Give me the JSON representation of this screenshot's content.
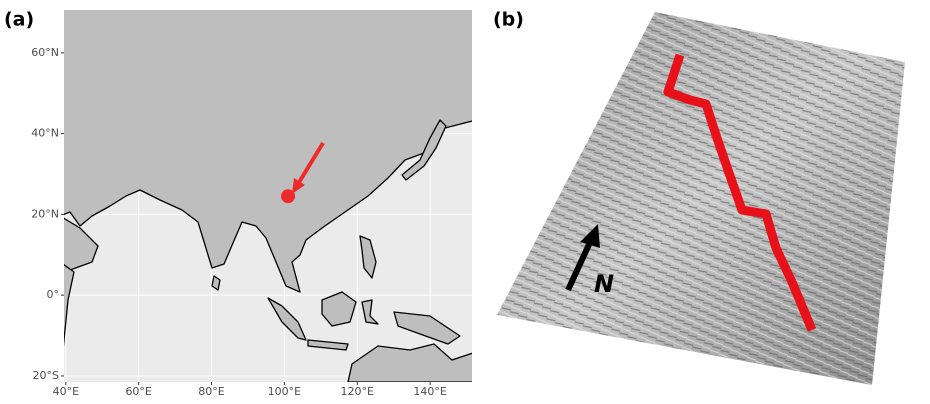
{
  "panel_a": {
    "label": "(a)",
    "lon_range": [
      39.5,
      151.5
    ],
    "lat_range": [
      -21.5,
      70.6
    ],
    "lat_ticks": [
      {
        "value": 60,
        "label": "60°N"
      },
      {
        "value": 40,
        "label": "40°N"
      },
      {
        "value": 20,
        "label": "20°N"
      },
      {
        "value": 0,
        "label": "0°"
      },
      {
        "value": -20,
        "label": "20°S"
      }
    ],
    "lon_ticks": [
      {
        "value": 40,
        "label": "40°E"
      },
      {
        "value": 60,
        "label": "60°E"
      },
      {
        "value": 80,
        "label": "80°E"
      },
      {
        "value": 100,
        "label": "100°E"
      },
      {
        "value": 120,
        "label": "120°E"
      },
      {
        "value": 140,
        "label": "140°E"
      }
    ],
    "marker": {
      "lon": 101,
      "lat": 24.5,
      "color": "#ee2a2a"
    }
  },
  "panel_b": {
    "label": "(b)",
    "north_label": "N"
  }
}
